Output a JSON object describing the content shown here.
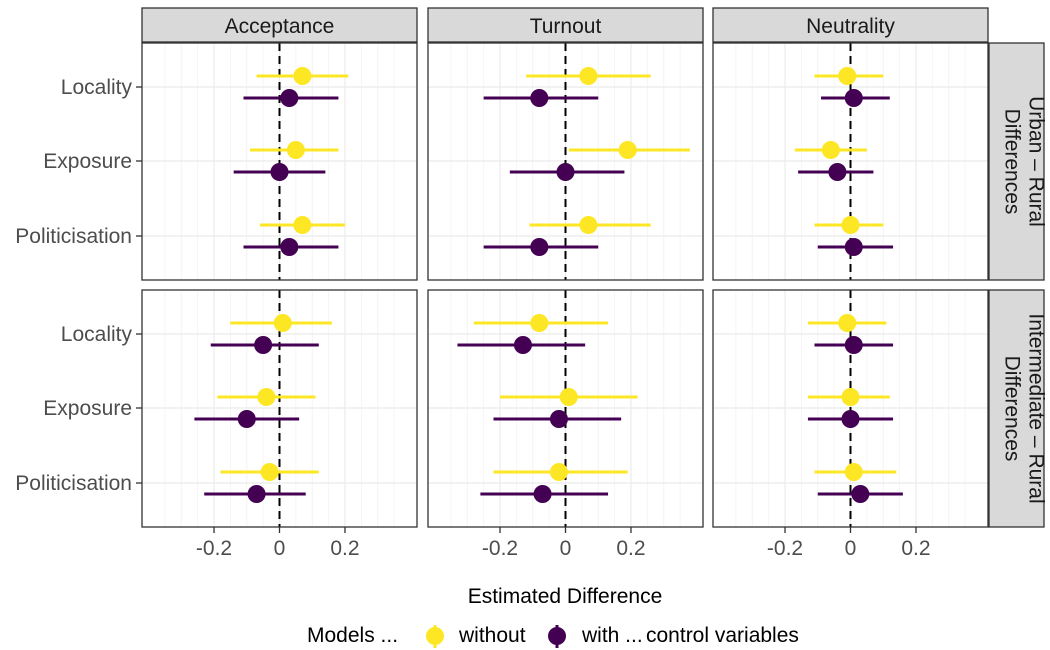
{
  "chart_data": {
    "type": "scatter",
    "subtype": "coefficient-plot",
    "facet_columns": [
      "Acceptance",
      "Turnout",
      "Neutrality"
    ],
    "facet_rows": [
      {
        "label_lines": [
          "Urban – Rural",
          "Differences"
        ]
      },
      {
        "label_lines": [
          "Intermediate – Rural",
          "Differences"
        ]
      }
    ],
    "categories": [
      "Locality",
      "Exposure",
      "Politicisation"
    ],
    "xlabel": "Estimated Difference",
    "xlim": [
      -0.42,
      0.42
    ],
    "x_ticks": [
      -0.2,
      0,
      0.2
    ],
    "x_tick_labels": [
      "-0.2",
      "0",
      "0.2"
    ],
    "reference_line": 0,
    "grid": true,
    "legend": {
      "position": "bottom",
      "title": "Models ...",
      "suffix": "control variables",
      "entries": [
        "without",
        "with ..."
      ]
    },
    "series": [
      {
        "name": "without",
        "color": "#FDE725"
      },
      {
        "name": "with ...",
        "color": "#440154"
      }
    ],
    "panels": [
      {
        "row": 0,
        "col": 0,
        "points": [
          {
            "category": "Locality",
            "without": {
              "est": 0.07,
              "lo": -0.07,
              "hi": 0.21
            },
            "with": {
              "est": 0.03,
              "lo": -0.11,
              "hi": 0.18
            }
          },
          {
            "category": "Exposure",
            "without": {
              "est": 0.05,
              "lo": -0.09,
              "hi": 0.18
            },
            "with": {
              "est": 0.0,
              "lo": -0.14,
              "hi": 0.14
            }
          },
          {
            "category": "Politicisation",
            "without": {
              "est": 0.07,
              "lo": -0.06,
              "hi": 0.2
            },
            "with": {
              "est": 0.03,
              "lo": -0.11,
              "hi": 0.18
            }
          }
        ]
      },
      {
        "row": 0,
        "col": 1,
        "points": [
          {
            "category": "Locality",
            "without": {
              "est": 0.07,
              "lo": -0.12,
              "hi": 0.26
            },
            "with": {
              "est": -0.08,
              "lo": -0.25,
              "hi": 0.1
            }
          },
          {
            "category": "Exposure",
            "without": {
              "est": 0.19,
              "lo": 0.01,
              "hi": 0.38
            },
            "with": {
              "est": 0.0,
              "lo": -0.17,
              "hi": 0.18
            }
          },
          {
            "category": "Politicisation",
            "without": {
              "est": 0.07,
              "lo": -0.11,
              "hi": 0.26
            },
            "with": {
              "est": -0.08,
              "lo": -0.25,
              "hi": 0.1
            }
          }
        ]
      },
      {
        "row": 0,
        "col": 2,
        "points": [
          {
            "category": "Locality",
            "without": {
              "est": -0.01,
              "lo": -0.11,
              "hi": 0.1
            },
            "with": {
              "est": 0.01,
              "lo": -0.09,
              "hi": 0.12
            }
          },
          {
            "category": "Exposure",
            "without": {
              "est": -0.06,
              "lo": -0.17,
              "hi": 0.05
            },
            "with": {
              "est": -0.04,
              "lo": -0.16,
              "hi": 0.07
            }
          },
          {
            "category": "Politicisation",
            "without": {
              "est": 0.0,
              "lo": -0.11,
              "hi": 0.1
            },
            "with": {
              "est": 0.01,
              "lo": -0.1,
              "hi": 0.13
            }
          }
        ]
      },
      {
        "row": 1,
        "col": 0,
        "points": [
          {
            "category": "Locality",
            "without": {
              "est": 0.01,
              "lo": -0.15,
              "hi": 0.16
            },
            "with": {
              "est": -0.05,
              "lo": -0.21,
              "hi": 0.12
            }
          },
          {
            "category": "Exposure",
            "without": {
              "est": -0.04,
              "lo": -0.19,
              "hi": 0.11
            },
            "with": {
              "est": -0.1,
              "lo": -0.26,
              "hi": 0.06
            }
          },
          {
            "category": "Politicisation",
            "without": {
              "est": -0.03,
              "lo": -0.18,
              "hi": 0.12
            },
            "with": {
              "est": -0.07,
              "lo": -0.23,
              "hi": 0.08
            }
          }
        ]
      },
      {
        "row": 1,
        "col": 1,
        "points": [
          {
            "category": "Locality",
            "without": {
              "est": -0.08,
              "lo": -0.28,
              "hi": 0.13
            },
            "with": {
              "est": -0.13,
              "lo": -0.33,
              "hi": 0.06
            }
          },
          {
            "category": "Exposure",
            "without": {
              "est": 0.01,
              "lo": -0.2,
              "hi": 0.22
            },
            "with": {
              "est": -0.02,
              "lo": -0.22,
              "hi": 0.17
            }
          },
          {
            "category": "Politicisation",
            "without": {
              "est": -0.02,
              "lo": -0.22,
              "hi": 0.19
            },
            "with": {
              "est": -0.07,
              "lo": -0.26,
              "hi": 0.13
            }
          }
        ]
      },
      {
        "row": 1,
        "col": 2,
        "points": [
          {
            "category": "Locality",
            "without": {
              "est": -0.01,
              "lo": -0.13,
              "hi": 0.11
            },
            "with": {
              "est": 0.01,
              "lo": -0.11,
              "hi": 0.13
            }
          },
          {
            "category": "Exposure",
            "without": {
              "est": 0.0,
              "lo": -0.13,
              "hi": 0.12
            },
            "with": {
              "est": 0.0,
              "lo": -0.13,
              "hi": 0.13
            }
          },
          {
            "category": "Politicisation",
            "without": {
              "est": 0.01,
              "lo": -0.11,
              "hi": 0.14
            },
            "with": {
              "est": 0.03,
              "lo": -0.1,
              "hi": 0.16
            }
          }
        ]
      }
    ]
  }
}
